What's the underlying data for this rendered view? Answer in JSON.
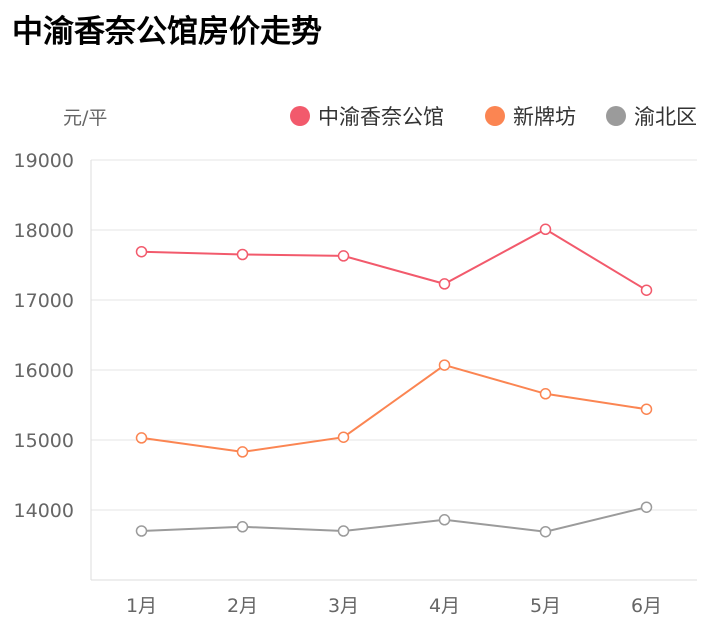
{
  "chart_data": {
    "type": "line",
    "title": "中渝香奈公馆房价走势",
    "ylabel": "元/平",
    "xlabel": "",
    "categories": [
      "1月",
      "2月",
      "3月",
      "4月",
      "5月",
      "6月"
    ],
    "ylim": [
      13000,
      19000
    ],
    "yticks": [
      14000,
      15000,
      16000,
      17000,
      18000,
      19000
    ],
    "grid": true,
    "legend": "top-right",
    "series": [
      {
        "name": "中渝香奈公馆",
        "color": "#f25a6c",
        "values": [
          17690,
          17650,
          17630,
          17230,
          18010,
          17140
        ]
      },
      {
        "name": "新牌坊",
        "color": "#fb8552",
        "values": [
          15030,
          14830,
          15040,
          16070,
          15660,
          15440
        ]
      },
      {
        "name": "渝北区",
        "color": "#9b9b9b",
        "values": [
          13700,
          13760,
          13700,
          13860,
          13690,
          14040
        ]
      }
    ]
  }
}
